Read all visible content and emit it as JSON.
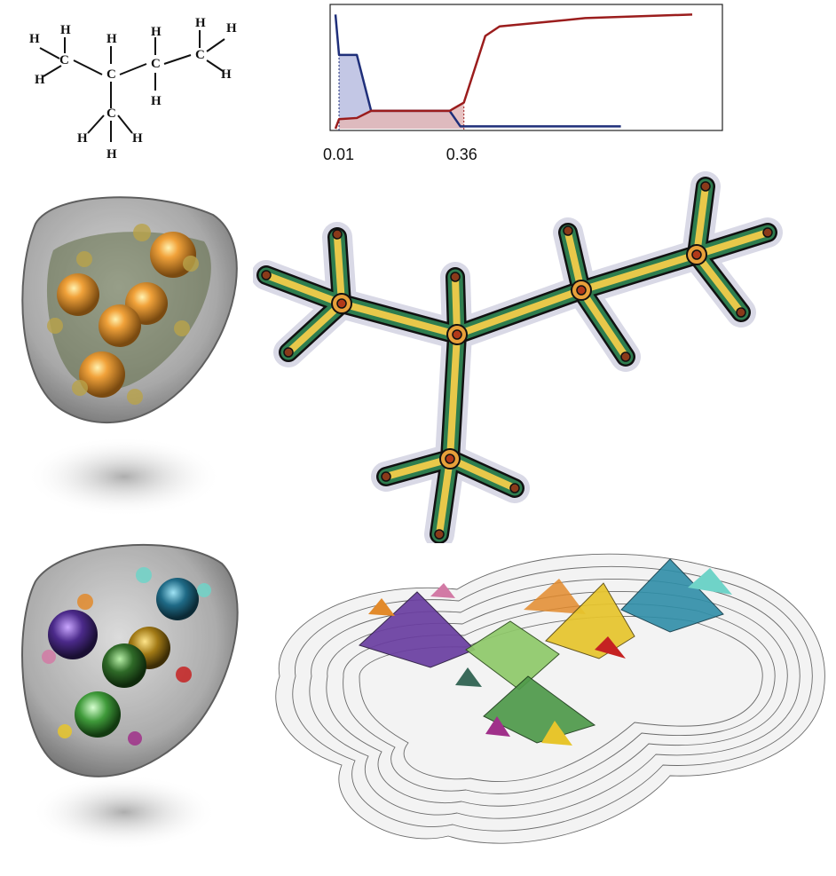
{
  "structural_formula": {
    "atoms": [
      {
        "symbol": "C"
      },
      {
        "symbol": "C"
      },
      {
        "symbol": "C"
      },
      {
        "symbol": "C"
      },
      {
        "symbol": "C"
      },
      {
        "symbol": "H"
      },
      {
        "symbol": "H"
      },
      {
        "symbol": "H"
      },
      {
        "symbol": "H"
      },
      {
        "symbol": "H"
      },
      {
        "symbol": "H"
      },
      {
        "symbol": "H"
      },
      {
        "symbol": "H"
      },
      {
        "symbol": "H"
      },
      {
        "symbol": "H"
      },
      {
        "symbol": "H"
      },
      {
        "symbol": "H"
      }
    ]
  },
  "chart_data": {
    "type": "line",
    "title": "",
    "xlabel": "",
    "ylabel": "",
    "xlim": [
      0,
      1.0
    ],
    "ylim": [
      0,
      1.0
    ],
    "grid": false,
    "tick_labels": [
      "0.01",
      "0.36"
    ],
    "markers": [
      0.01,
      0.36
    ],
    "series": [
      {
        "color": "#1f2f7a",
        "fill": "#b9bde0",
        "points": [
          [
            0.0,
            0.96
          ],
          [
            0.01,
            0.62
          ],
          [
            0.06,
            0.62
          ],
          [
            0.1,
            0.15
          ],
          [
            0.32,
            0.15
          ],
          [
            0.35,
            0.02
          ],
          [
            0.8,
            0.02
          ]
        ]
      },
      {
        "color": "#9b1d1d",
        "fill": "#e3b7b7",
        "points": [
          [
            0.0,
            0.0
          ],
          [
            0.01,
            0.08
          ],
          [
            0.06,
            0.09
          ],
          [
            0.1,
            0.15
          ],
          [
            0.32,
            0.15
          ],
          [
            0.36,
            0.22
          ],
          [
            0.39,
            0.5
          ],
          [
            0.42,
            0.78
          ],
          [
            0.46,
            0.86
          ],
          [
            0.6,
            0.9
          ],
          [
            0.7,
            0.93
          ],
          [
            1.0,
            0.96
          ]
        ]
      }
    ]
  },
  "colors": {
    "chart_blue": "#1f2f7a",
    "chart_red": "#9b1d1d",
    "skeleton_green": "#2e7d4f",
    "skeleton_yellow": "#e8c84a",
    "skeleton_node": "#b23a1a",
    "purple": "#6a3ea1",
    "orange": "#e28a2b",
    "green": "#4f9a4a",
    "teal": "#2f8ea8",
    "yellow": "#e7c52c",
    "red": "#c52222"
  }
}
